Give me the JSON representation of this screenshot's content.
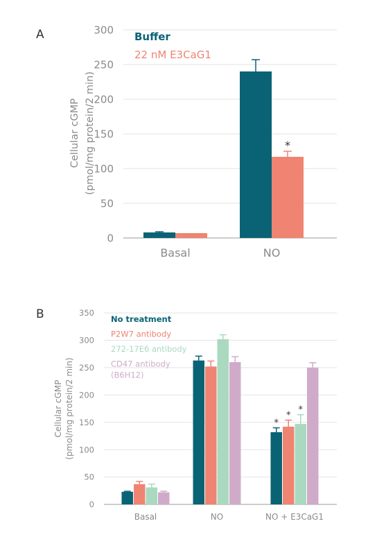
{
  "chart_data": [
    {
      "type": "bar",
      "panel_label": "A",
      "categories": [
        "Basal",
        "NO"
      ],
      "ylabel_lines": [
        "Cellular cGMP",
        "(pmol/mg protein/2 min)"
      ],
      "ylim": [
        0,
        300
      ],
      "yticks": [
        0,
        50,
        100,
        150,
        200,
        250,
        300
      ],
      "grid": true,
      "legend_position": "top-left",
      "series": [
        {
          "name": "Buffer",
          "color": "#0a6375",
          "values": [
            8,
            240
          ],
          "errors": [
            1,
            17
          ],
          "markers": [
            "",
            ""
          ]
        },
        {
          "name": "22 nM E3CaG1",
          "color": "#ef8472",
          "values": [
            7,
            117
          ],
          "errors": [
            0,
            8
          ],
          "markers": [
            "",
            "*"
          ]
        }
      ]
    },
    {
      "type": "bar",
      "panel_label": "B",
      "categories": [
        "Basal",
        "NO",
        "NO + E3CaG1"
      ],
      "ylabel_lines": [
        "Cellular cGMP",
        "(pmol/mg protein/2 min)"
      ],
      "ylim": [
        0,
        350
      ],
      "yticks": [
        0,
        50,
        100,
        150,
        200,
        250,
        300,
        350
      ],
      "grid": true,
      "legend_position": "top-left",
      "series": [
        {
          "name": "No treatment",
          "name_lines": [
            "No treatment"
          ],
          "color": "#0a6375",
          "values": [
            23,
            263,
            132
          ],
          "errors": [
            1,
            8,
            8
          ],
          "markers": [
            "",
            "",
            "*"
          ]
        },
        {
          "name": "P2W7 antibody",
          "name_lines": [
            "P2W7 antibody"
          ],
          "color": "#ef8472",
          "values": [
            37,
            252,
            142
          ],
          "errors": [
            5,
            10,
            12
          ],
          "markers": [
            "",
            "",
            "*"
          ]
        },
        {
          "name": "272-17E6 antibody",
          "name_lines": [
            "272-17E6 antibody"
          ],
          "color": "#a9d9bf",
          "values": [
            31,
            302,
            147
          ],
          "errors": [
            6,
            8,
            17
          ],
          "markers": [
            "",
            "",
            "*"
          ]
        },
        {
          "name": "CD47 antibody (B6H12)",
          "name_lines": [
            "CD47 antibody",
            "(B6H12)"
          ],
          "color": "#cfabc9",
          "values": [
            22,
            260,
            250
          ],
          "errors": [
            2,
            10,
            9
          ],
          "markers": [
            "",
            "",
            ""
          ]
        }
      ]
    }
  ]
}
